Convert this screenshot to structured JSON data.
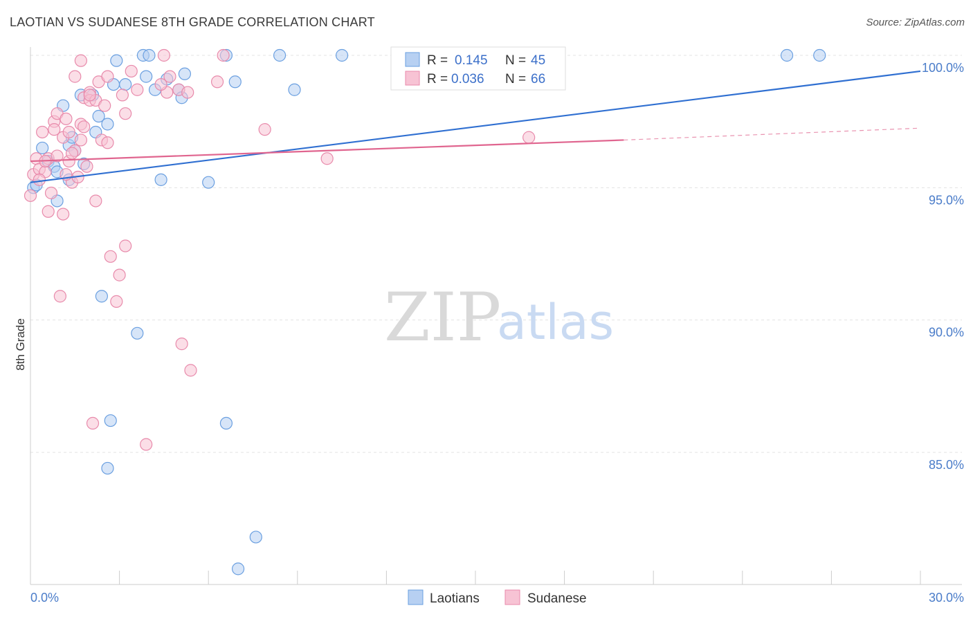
{
  "title": "LAOTIAN VS SUDANESE 8TH GRADE CORRELATION CHART",
  "source": "Source: ZipAtlas.com",
  "watermark": {
    "zip": "ZIP",
    "atlas": "atlas"
  },
  "chart_data": {
    "type": "scatter",
    "title": "LAOTIAN VS SUDANESE 8TH GRADE CORRELATION CHART",
    "xlabel": "",
    "ylabel": "8th Grade",
    "xlim": [
      0,
      30
    ],
    "ylim": [
      80.5,
      100.5
    ],
    "x_tick_labels": [
      {
        "v": 0,
        "label": "0.0%"
      },
      {
        "v": 30,
        "label": "30.0%"
      }
    ],
    "y_tick_labels": [
      {
        "v": 100,
        "label": "100.0%"
      },
      {
        "v": 95,
        "label": "95.0%"
      },
      {
        "v": 90,
        "label": "90.0%"
      },
      {
        "v": 85,
        "label": "85.0%"
      }
    ],
    "grid": true,
    "legend_position": "top-center",
    "legend": [
      {
        "r_label": "R =",
        "r_value": "0.145",
        "n_label": "N =",
        "n_value": "45"
      },
      {
        "r_label": "R =",
        "r_value": "0.036",
        "n_label": "N =",
        "n_value": "66"
      }
    ],
    "series": [
      {
        "name": "Laotians",
        "color": "#6a9fe0",
        "fill": "#b7d0f2",
        "trend": {
          "x": [
            0,
            30
          ],
          "y": [
            95.2,
            99.4
          ],
          "color": "#2f6fd1"
        },
        "points": [
          [
            0.1,
            95.0
          ],
          [
            0.2,
            95.1
          ],
          [
            0.4,
            96.5
          ],
          [
            0.6,
            96.0
          ],
          [
            0.8,
            95.8
          ],
          [
            0.9,
            95.6
          ],
          [
            0.9,
            94.5
          ],
          [
            1.1,
            98.1
          ],
          [
            1.3,
            95.3
          ],
          [
            1.3,
            96.6
          ],
          [
            1.4,
            96.9
          ],
          [
            1.5,
            96.4
          ],
          [
            1.7,
            98.5
          ],
          [
            1.8,
            95.9
          ],
          [
            2.1,
            98.5
          ],
          [
            2.2,
            97.1
          ],
          [
            2.3,
            97.7
          ],
          [
            2.4,
            90.9
          ],
          [
            2.6,
            97.4
          ],
          [
            2.7,
            86.2
          ],
          [
            2.6,
            84.4
          ],
          [
            2.8,
            98.9
          ],
          [
            2.9,
            99.8
          ],
          [
            3.2,
            98.9
          ],
          [
            3.6,
            89.5
          ],
          [
            3.8,
            100.0
          ],
          [
            3.9,
            99.2
          ],
          [
            4.0,
            100.0
          ],
          [
            4.2,
            98.7
          ],
          [
            4.4,
            95.3
          ],
          [
            4.6,
            99.1
          ],
          [
            5.0,
            98.7
          ],
          [
            5.1,
            98.4
          ],
          [
            5.2,
            99.3
          ],
          [
            6.0,
            95.2
          ],
          [
            6.6,
            86.1
          ],
          [
            6.6,
            100.0
          ],
          [
            6.9,
            99.0
          ],
          [
            7.0,
            80.6
          ],
          [
            7.6,
            81.8
          ],
          [
            8.4,
            100.0
          ],
          [
            8.9,
            98.7
          ],
          [
            10.5,
            100.0
          ],
          [
            25.5,
            100.0
          ],
          [
            26.6,
            100.0
          ]
        ]
      },
      {
        "name": "Sudanese",
        "color": "#e88aab",
        "fill": "#f7c3d4",
        "trend": {
          "x": [
            0,
            20
          ],
          "y": [
            96.0,
            96.8
          ],
          "dash_x": [
            20,
            30
          ],
          "dash_y": [
            96.8,
            97.25
          ],
          "color": "#e0658f"
        },
        "points": [
          [
            0.0,
            94.7
          ],
          [
            0.1,
            95.5
          ],
          [
            0.2,
            96.1
          ],
          [
            0.3,
            95.7
          ],
          [
            0.4,
            97.1
          ],
          [
            0.5,
            95.6
          ],
          [
            0.6,
            96.1
          ],
          [
            0.6,
            94.1
          ],
          [
            0.7,
            94.8
          ],
          [
            0.8,
            97.5
          ],
          [
            0.8,
            97.2
          ],
          [
            0.9,
            97.8
          ],
          [
            1.0,
            90.9
          ],
          [
            1.1,
            96.9
          ],
          [
            1.1,
            94.0
          ],
          [
            1.2,
            97.6
          ],
          [
            1.3,
            97.1
          ],
          [
            1.3,
            96.0
          ],
          [
            1.4,
            95.2
          ],
          [
            1.5,
            99.2
          ],
          [
            1.5,
            96.4
          ],
          [
            1.6,
            95.4
          ],
          [
            1.7,
            99.8
          ],
          [
            1.7,
            97.4
          ],
          [
            1.7,
            96.8
          ],
          [
            1.8,
            98.4
          ],
          [
            1.9,
            95.8
          ],
          [
            2.0,
            98.6
          ],
          [
            2.0,
            98.3
          ],
          [
            2.1,
            86.1
          ],
          [
            2.2,
            94.5
          ],
          [
            2.2,
            98.3
          ],
          [
            2.3,
            99.0
          ],
          [
            2.4,
            96.8
          ],
          [
            2.5,
            98.1
          ],
          [
            2.6,
            99.2
          ],
          [
            2.7,
            92.4
          ],
          [
            2.9,
            90.7
          ],
          [
            3.0,
            91.7
          ],
          [
            3.1,
            98.5
          ],
          [
            3.2,
            97.8
          ],
          [
            3.2,
            92.8
          ],
          [
            3.4,
            99.4
          ],
          [
            3.6,
            98.7
          ],
          [
            3.9,
            85.3
          ],
          [
            4.5,
            100.0
          ],
          [
            4.6,
            98.6
          ],
          [
            4.7,
            99.2
          ],
          [
            5.0,
            98.7
          ],
          [
            5.1,
            89.1
          ],
          [
            5.4,
            88.1
          ],
          [
            6.3,
            99.0
          ],
          [
            6.5,
            100.0
          ],
          [
            7.9,
            97.2
          ],
          [
            10.0,
            96.1
          ],
          [
            16.8,
            96.9
          ],
          [
            0.3,
            95.3
          ],
          [
            0.5,
            96.0
          ],
          [
            0.9,
            96.2
          ],
          [
            1.2,
            95.5
          ],
          [
            1.4,
            96.3
          ],
          [
            1.8,
            97.3
          ],
          [
            2.0,
            98.5
          ],
          [
            2.6,
            96.7
          ],
          [
            4.4,
            98.9
          ],
          [
            5.3,
            98.6
          ]
        ]
      }
    ]
  }
}
